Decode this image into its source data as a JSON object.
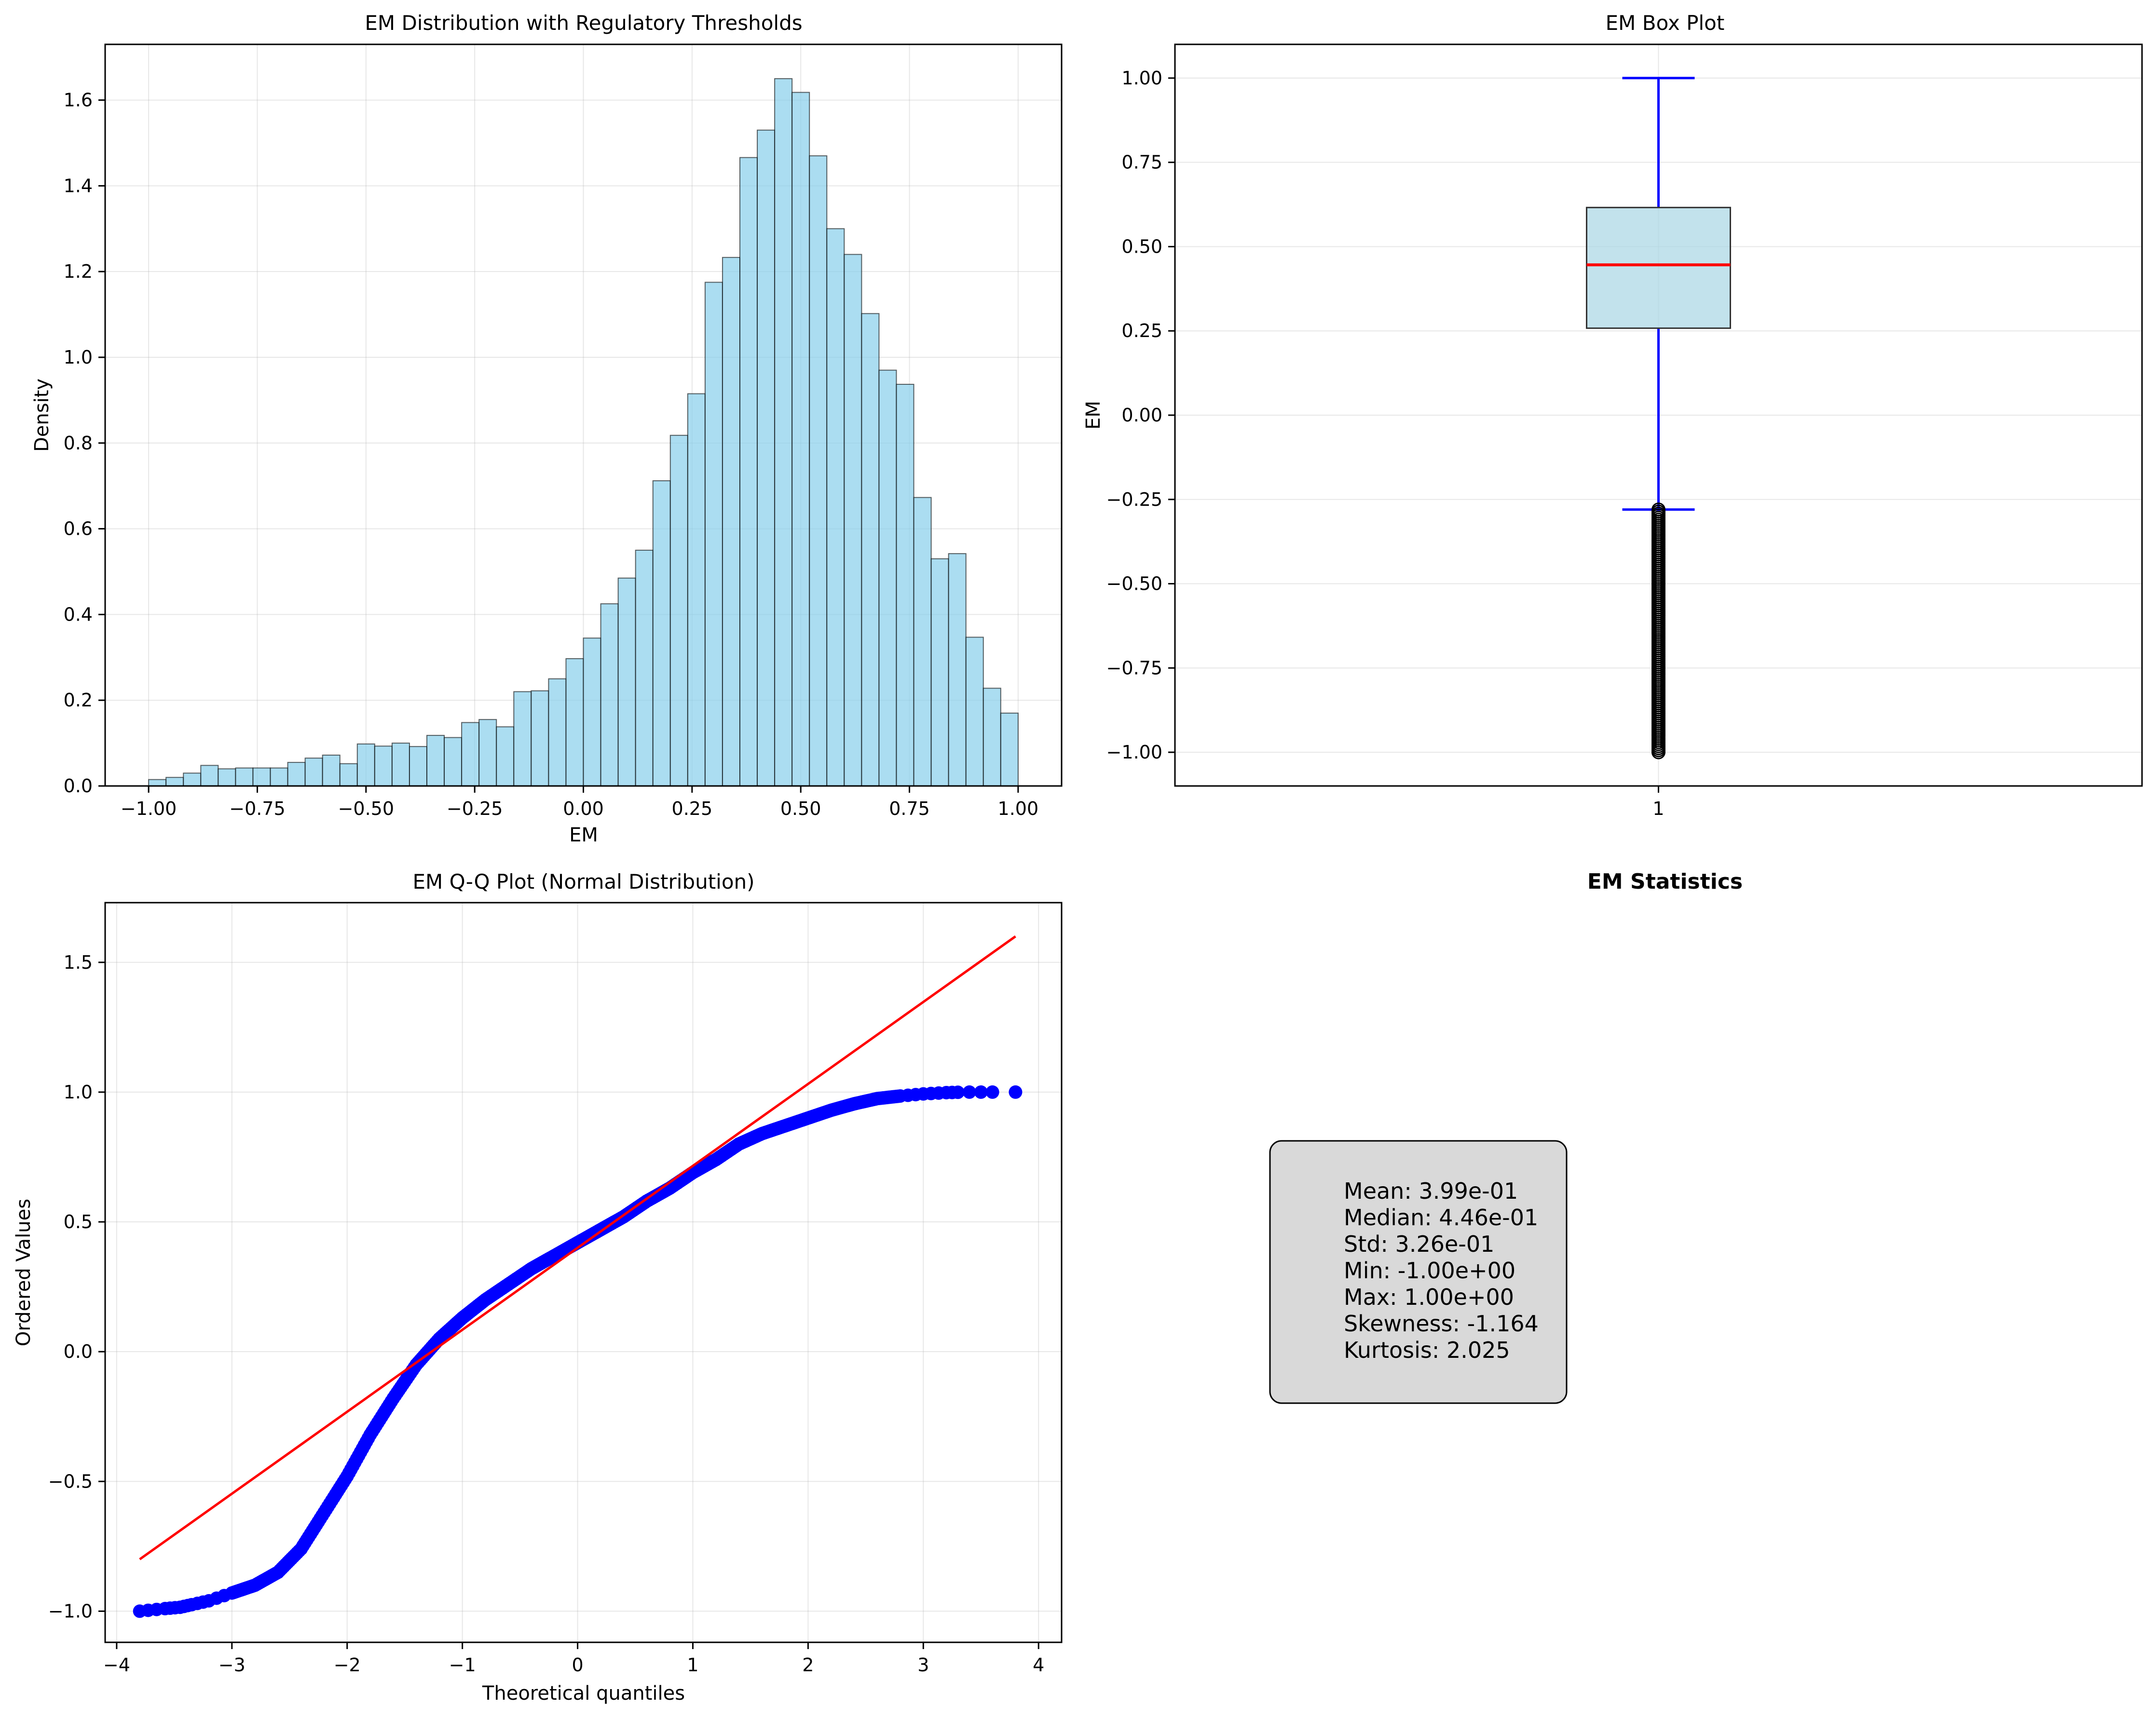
{
  "chart_data": [
    {
      "type": "bar",
      "title": "EM Distribution with Regulatory Thresholds",
      "xlabel": "EM",
      "ylabel": "Density",
      "xlim": [
        -1.1,
        1.1
      ],
      "ylim": [
        0,
        1.73
      ],
      "xticks": [
        -1.0,
        -0.75,
        -0.5,
        -0.25,
        0.0,
        0.25,
        0.5,
        0.75,
        1.0
      ],
      "xtick_labels": [
        "−1.00",
        "−0.75",
        "−0.50",
        "−0.25",
        "0.00",
        "0.25",
        "0.50",
        "0.75",
        "1.00"
      ],
      "yticks": [
        0.0,
        0.2,
        0.4,
        0.6,
        0.8,
        1.0,
        1.2,
        1.4,
        1.6
      ],
      "ytick_labels": [
        "0.0",
        "0.2",
        "0.4",
        "0.6",
        "0.8",
        "1.0",
        "1.2",
        "1.4",
        "1.6"
      ],
      "grid": true,
      "bar_color": "#87ceeb",
      "bin_start": -1.0,
      "bin_width": 0.04,
      "values": [
        0.015,
        0.02,
        0.03,
        0.048,
        0.04,
        0.042,
        0.042,
        0.042,
        0.055,
        0.065,
        0.072,
        0.052,
        0.098,
        0.093,
        0.1,
        0.092,
        0.118,
        0.113,
        0.148,
        0.155,
        0.138,
        0.22,
        0.222,
        0.25,
        0.297,
        0.345,
        0.425,
        0.485,
        0.55,
        0.712,
        0.818,
        0.915,
        1.175,
        1.233,
        1.466,
        1.53,
        1.65,
        1.618,
        1.47,
        1.3,
        1.24,
        1.102,
        0.97,
        0.937,
        0.673,
        0.53,
        0.542,
        0.347,
        0.228,
        0.17
      ]
    },
    {
      "type": "box",
      "title": "EM Box Plot",
      "ylabel": "EM",
      "xtick_labels": [
        "1"
      ],
      "ylim": [
        -1.1,
        1.1
      ],
      "yticks": [
        -1.0,
        -0.75,
        -0.5,
        -0.25,
        0.0,
        0.25,
        0.5,
        0.75,
        1.0
      ],
      "ytick_labels": [
        "−1.00",
        "−0.75",
        "−0.50",
        "−0.25",
        "0.00",
        "0.25",
        "0.50",
        "0.75",
        "1.00"
      ],
      "grid": true,
      "box_color": "#add8e6",
      "median_color": "#ff0000",
      "whisker_color": "#0000ff",
      "q1": 0.258,
      "median": 0.446,
      "q3": 0.616,
      "whisker_low": -0.28,
      "whisker_high": 1.0,
      "outlier_range": [
        -1.0,
        -0.28
      ]
    },
    {
      "type": "scatter",
      "title": "EM Q-Q Plot (Normal Distribution)",
      "xlabel": "Theoretical quantiles",
      "ylabel": "Ordered Values",
      "xlim": [
        -4.1,
        4.2
      ],
      "ylim": [
        -1.12,
        1.73
      ],
      "xticks": [
        -4,
        -3,
        -2,
        -1,
        0,
        1,
        2,
        3,
        4
      ],
      "xtick_labels": [
        "−4",
        "−3",
        "−2",
        "−1",
        "0",
        "1",
        "2",
        "3",
        "4"
      ],
      "yticks": [
        -1.0,
        -0.5,
        0.0,
        0.5,
        1.0,
        1.5
      ],
      "ytick_labels": [
        "−1.0",
        "−0.5",
        "0.0",
        "0.5",
        "1.0",
        "1.5"
      ],
      "grid": true,
      "point_color": "#0000ff",
      "line_color": "#ff0000",
      "fit_line": {
        "x": [
          -3.8,
          3.8
        ],
        "y": [
          -0.8,
          1.6
        ]
      },
      "curve": [
        [
          -3.8,
          -1.0
        ],
        [
          -3.58,
          -0.99
        ],
        [
          -3.45,
          -0.985
        ],
        [
          -3.35,
          -0.975
        ],
        [
          -3.2,
          -0.96
        ],
        [
          -3.0,
          -0.93
        ],
        [
          -2.8,
          -0.9
        ],
        [
          -2.6,
          -0.85
        ],
        [
          -2.4,
          -0.76
        ],
        [
          -2.2,
          -0.62
        ],
        [
          -2.0,
          -0.48
        ],
        [
          -1.8,
          -0.32
        ],
        [
          -1.6,
          -0.18
        ],
        [
          -1.4,
          -0.05
        ],
        [
          -1.2,
          0.05
        ],
        [
          -1.0,
          0.13
        ],
        [
          -0.8,
          0.2
        ],
        [
          -0.6,
          0.26
        ],
        [
          -0.4,
          0.32
        ],
        [
          -0.2,
          0.37
        ],
        [
          0.0,
          0.42
        ],
        [
          0.2,
          0.47
        ],
        [
          0.4,
          0.52
        ],
        [
          0.6,
          0.58
        ],
        [
          0.8,
          0.63
        ],
        [
          1.0,
          0.69
        ],
        [
          1.2,
          0.74
        ],
        [
          1.4,
          0.8
        ],
        [
          1.6,
          0.84
        ],
        [
          1.8,
          0.87
        ],
        [
          2.0,
          0.9
        ],
        [
          2.2,
          0.93
        ],
        [
          2.4,
          0.955
        ],
        [
          2.6,
          0.975
        ],
        [
          2.8,
          0.985
        ],
        [
          3.0,
          0.993
        ],
        [
          3.2,
          0.998
        ],
        [
          3.35,
          1.0
        ]
      ],
      "tail_points": [
        [
          3.4,
          1.0
        ],
        [
          3.5,
          1.0
        ],
        [
          3.6,
          1.0
        ],
        [
          3.8,
          1.0
        ]
      ]
    },
    {
      "type": "table",
      "title": "EM Statistics",
      "lines": [
        "Mean: 3.99e-01",
        "Median: 4.46e-01",
        "Std: 3.26e-01",
        "Min: -1.00e+00",
        "Max: 1.00e+00",
        "Skewness: -1.164",
        "Kurtosis: 2.025"
      ]
    }
  ]
}
